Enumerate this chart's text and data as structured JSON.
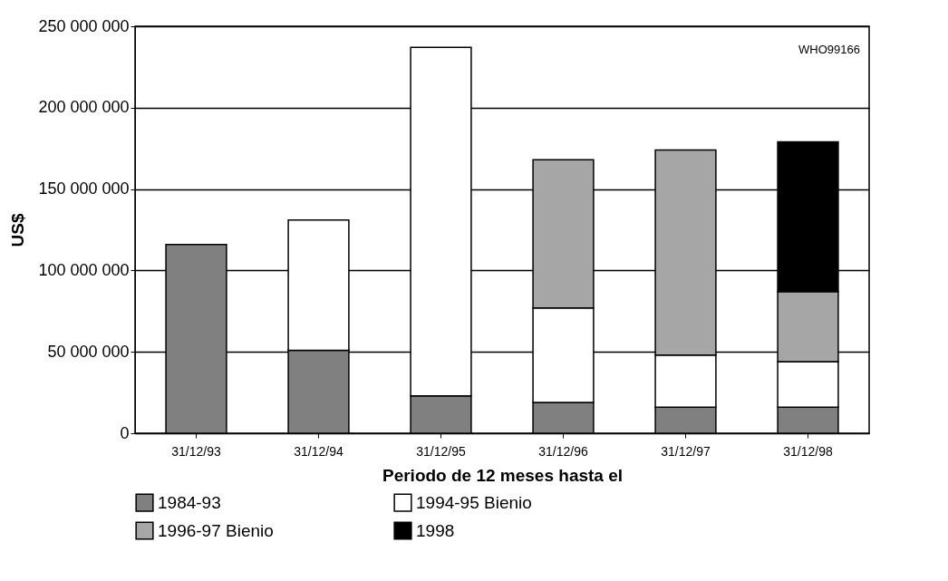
{
  "chart_data": {
    "type": "bar",
    "stacked": true,
    "xlabel": "Periodo de 12 meses hasta el",
    "ylabel": "US$",
    "categories": [
      "31/12/93",
      "31/12/94",
      "31/12/95",
      "31/12/96",
      "31/12/97",
      "31/12/98"
    ],
    "series": [
      {
        "name": "1984-93",
        "color": "#808080",
        "values": [
          116000000,
          51000000,
          23000000,
          19000000,
          16000000,
          16000000
        ]
      },
      {
        "name": "1994-95 Bienio",
        "color": "#ffffff",
        "values": [
          null,
          80000000,
          214000000,
          58000000,
          32000000,
          28000000
        ]
      },
      {
        "name": "1996-97 Bienio",
        "color": "#a6a6a6",
        "values": [
          null,
          null,
          null,
          91000000,
          126000000,
          43000000
        ]
      },
      {
        "name": "1998",
        "color": "#000000",
        "values": [
          null,
          null,
          null,
          null,
          null,
          92000000
        ]
      }
    ],
    "ylim": [
      0,
      250000000
    ],
    "yticks": [
      {
        "value": 0,
        "label": "0"
      },
      {
        "value": 50000000,
        "label": "50 000 000"
      },
      {
        "value": 100000000,
        "label": "100 000 000"
      },
      {
        "value": 150000000,
        "label": "150 000 000"
      },
      {
        "value": 200000000,
        "label": "200 000 000"
      },
      {
        "value": 250000000,
        "label": "250 000 000"
      }
    ],
    "grid": "y",
    "legend": "bottom",
    "annotations": [
      "WHO99166"
    ]
  }
}
